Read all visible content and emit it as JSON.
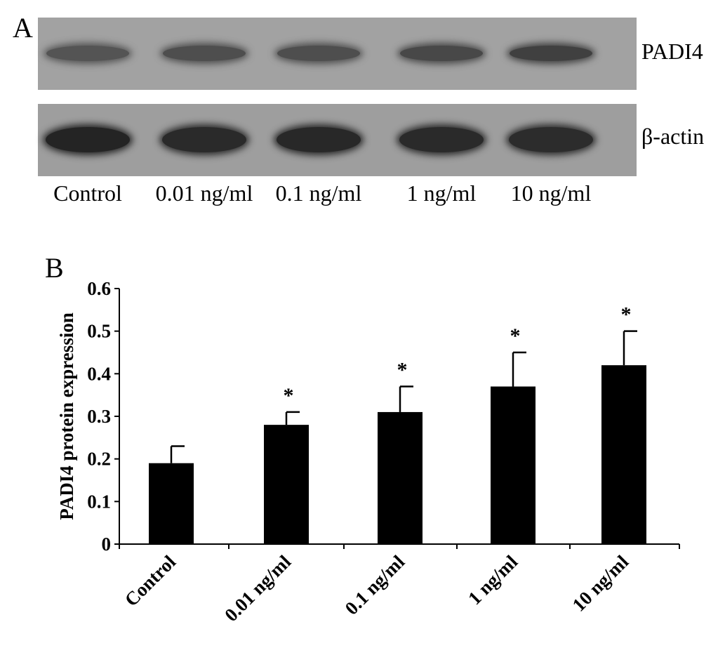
{
  "panel_a": {
    "letter": "A",
    "blots": [
      {
        "label": "PADI4",
        "band_intensity": [
          0.55,
          0.6,
          0.6,
          0.65,
          0.72
        ]
      },
      {
        "label": "β-actin",
        "band_intensity": [
          0.95,
          0.9,
          0.92,
          0.9,
          0.88
        ]
      }
    ],
    "lanes": [
      "Control",
      "0.01 ng/ml",
      "0.1 ng/ml",
      "1 ng/ml",
      "10 ng/ml"
    ]
  },
  "panel_b": {
    "letter": "B"
  },
  "chart_data": {
    "type": "bar",
    "categories": [
      "Control",
      "0.01 ng/ml",
      "0.1 ng/ml",
      "1 ng/ml",
      "10 ng/ml"
    ],
    "values": [
      0.19,
      0.28,
      0.31,
      0.37,
      0.42
    ],
    "errors": [
      0.04,
      0.03,
      0.06,
      0.08,
      0.08
    ],
    "significance": [
      "",
      "*",
      "*",
      "*",
      "*"
    ],
    "ylabel": "PADI4 protein expression",
    "xlabel": "",
    "ylim": [
      0,
      0.6
    ],
    "yticks": [
      "0",
      "0.1",
      "0.2",
      "0.3",
      "0.4",
      "0.5",
      "0.6"
    ],
    "grid": false,
    "bar_color": "#000000"
  }
}
